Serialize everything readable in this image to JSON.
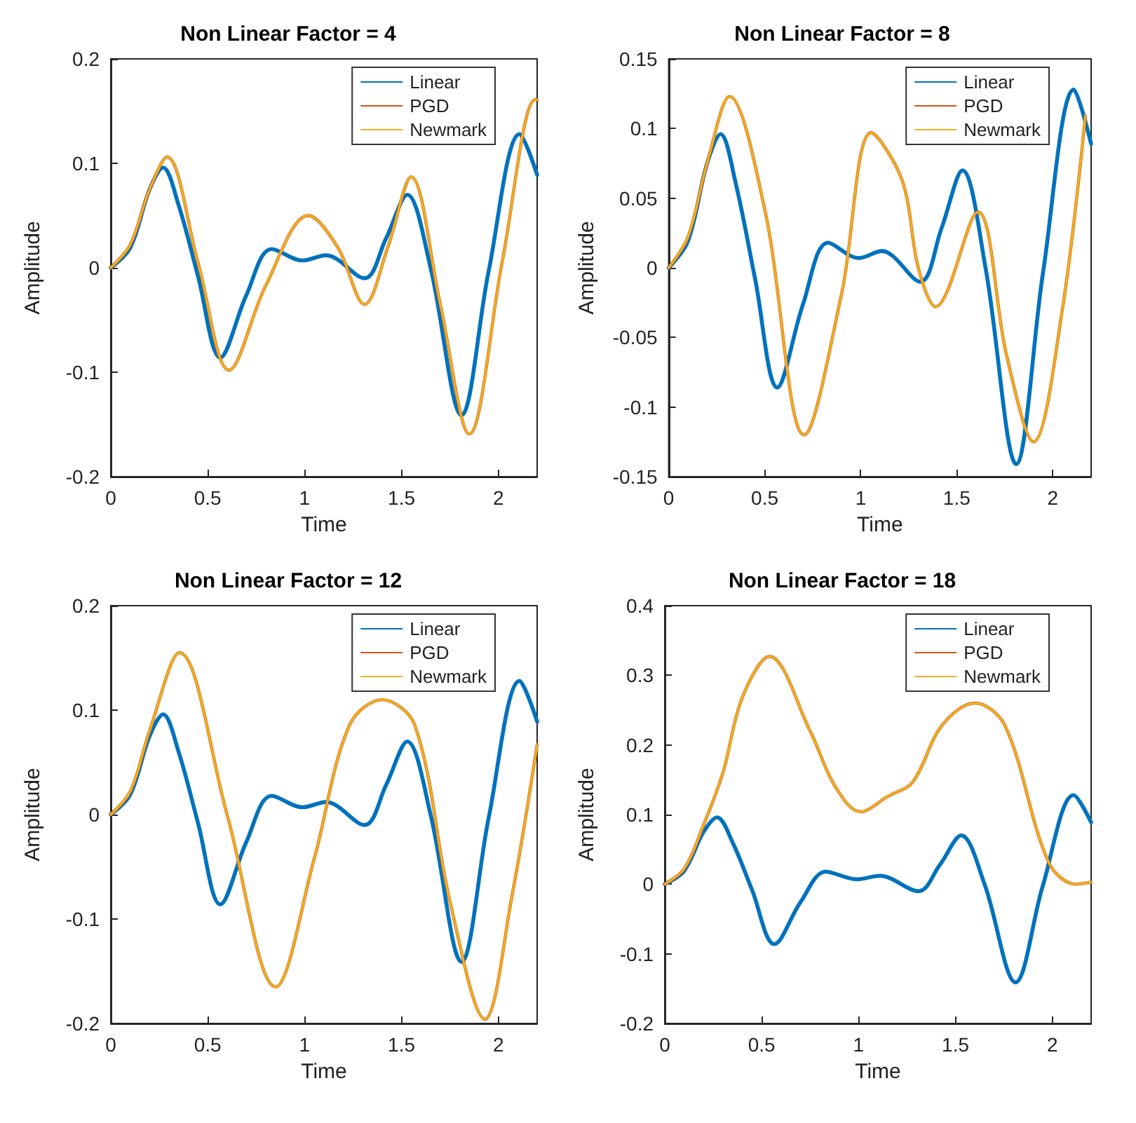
{
  "chart_data": [
    {
      "type": "line",
      "title": "Non Linear Factor = 4",
      "xlabel": "Time",
      "ylabel": "Amplitude",
      "xlim": [
        0,
        2.2
      ],
      "xticks": [
        0,
        0.5,
        1,
        1.5,
        2
      ],
      "ylim": [
        -0.2,
        0.2
      ],
      "yticks": [
        -0.2,
        -0.1,
        0,
        0.1,
        0.2
      ],
      "grid": false,
      "legend": "top right",
      "marker": "none",
      "line_style": "solid",
      "series": [
        {
          "name": "Linear",
          "color": "#0072bd",
          "x": [
            0,
            0.1,
            0.2,
            0.27,
            0.35,
            0.45,
            0.565,
            0.7,
            0.83,
            0.99,
            1.11,
            1.31,
            1.42,
            1.53,
            1.65,
            1.81,
            1.95,
            2.11,
            2.2
          ],
          "values": [
            0,
            0.019,
            0.075,
            0.096,
            0.06,
            -0.008,
            -0.086,
            -0.026,
            0.018,
            0.007,
            0.012,
            -0.01,
            0.028,
            0.07,
            0,
            -0.141,
            -0.003,
            0.128,
            0.089
          ]
        },
        {
          "name": "PGD",
          "color": "#d95319",
          "x": [
            0,
            0.1,
            0.2,
            0.29,
            0.45,
            0.61,
            0.8,
            1.02,
            1.17,
            1.31,
            1.43,
            1.55,
            1.7,
            1.85,
            2.02,
            2.19,
            2.2
          ],
          "values": [
            0,
            0.022,
            0.075,
            0.106,
            0.005,
            -0.098,
            -0.017,
            0.05,
            0.02,
            -0.035,
            0.02,
            0.087,
            -0.035,
            -0.159,
            0.006,
            0.161,
            0.161
          ]
        },
        {
          "name": "Newmark",
          "color": "#edb120",
          "x": [
            0,
            0.1,
            0.2,
            0.29,
            0.45,
            0.61,
            0.8,
            1.02,
            1.17,
            1.31,
            1.43,
            1.55,
            1.7,
            1.85,
            2.02,
            2.19,
            2.2
          ],
          "values": [
            0,
            0.022,
            0.075,
            0.106,
            0.005,
            -0.098,
            -0.017,
            0.05,
            0.02,
            -0.035,
            0.02,
            0.087,
            -0.035,
            -0.159,
            0.006,
            0.161,
            0.161
          ]
        }
      ]
    },
    {
      "type": "line",
      "title": "Non Linear Factor = 8",
      "xlabel": "Time",
      "ylabel": "Amplitude",
      "xlim": [
        0,
        2.2
      ],
      "xticks": [
        0,
        0.5,
        1,
        1.5,
        2
      ],
      "ylim": [
        -0.15,
        0.15
      ],
      "yticks": [
        -0.15,
        -0.1,
        -0.05,
        0,
        0.05,
        0.1,
        0.15
      ],
      "grid": false,
      "legend": "top right",
      "marker": "none",
      "line_style": "solid",
      "series": [
        {
          "name": "Linear",
          "color": "#0072bd",
          "x": [
            0,
            0.1,
            0.2,
            0.27,
            0.35,
            0.45,
            0.565,
            0.7,
            0.83,
            0.99,
            1.11,
            1.31,
            1.42,
            1.53,
            1.65,
            1.81,
            1.95,
            2.11,
            2.2
          ],
          "values": [
            0,
            0.019,
            0.075,
            0.096,
            0.06,
            -0.008,
            -0.086,
            -0.026,
            0.018,
            0.007,
            0.012,
            -0.01,
            0.028,
            0.07,
            0,
            -0.141,
            -0.003,
            0.128,
            0.089
          ]
        },
        {
          "name": "PGD",
          "color": "#d95319",
          "x": [
            0,
            0.1,
            0.2,
            0.317,
            0.5,
            0.706,
            0.9,
            1.055,
            1.215,
            1.3,
            1.39,
            1.61,
            1.76,
            1.9,
            2.05,
            2.17
          ],
          "values": [
            0,
            0.022,
            0.075,
            0.123,
            0.042,
            -0.12,
            -0.019,
            0.097,
            0.063,
            0,
            -0.028,
            0.04,
            -0.063,
            -0.125,
            -0.03,
            0.109
          ]
        },
        {
          "name": "Newmark",
          "color": "#edb120",
          "x": [
            0,
            0.1,
            0.2,
            0.317,
            0.5,
            0.706,
            0.9,
            1.055,
            1.215,
            1.3,
            1.39,
            1.61,
            1.76,
            1.9,
            2.05,
            2.17
          ],
          "values": [
            0,
            0.022,
            0.075,
            0.123,
            0.042,
            -0.12,
            -0.019,
            0.097,
            0.063,
            0,
            -0.028,
            0.04,
            -0.063,
            -0.125,
            -0.03,
            0.109
          ]
        }
      ]
    },
    {
      "type": "line",
      "title": "Non Linear Factor = 12",
      "xlabel": "Time",
      "ylabel": "Amplitude",
      "xlim": [
        0,
        2.2
      ],
      "xticks": [
        0,
        0.5,
        1,
        1.5,
        2
      ],
      "ylim": [
        -0.2,
        0.2
      ],
      "yticks": [
        -0.2,
        -0.1,
        0,
        0.1,
        0.2
      ],
      "grid": false,
      "legend": "top right",
      "marker": "none",
      "line_style": "solid",
      "series": [
        {
          "name": "Linear",
          "color": "#0072bd",
          "x": [
            0,
            0.1,
            0.2,
            0.27,
            0.35,
            0.45,
            0.565,
            0.7,
            0.83,
            0.99,
            1.11,
            1.31,
            1.42,
            1.53,
            1.65,
            1.81,
            1.95,
            2.11,
            2.2
          ],
          "values": [
            0,
            0.019,
            0.075,
            0.096,
            0.06,
            -0.008,
            -0.086,
            -0.026,
            0.018,
            0.007,
            0.012,
            -0.01,
            0.028,
            0.07,
            0,
            -0.141,
            -0.003,
            0.128,
            0.089
          ]
        },
        {
          "name": "PGD",
          "color": "#d95319",
          "x": [
            0,
            0.1,
            0.2,
            0.355,
            0.6,
            0.85,
            1.05,
            1.23,
            1.4,
            1.57,
            1.75,
            1.93,
            2.07,
            2.2
          ],
          "values": [
            0,
            0.022,
            0.08,
            0.155,
            0,
            -0.165,
            -0.042,
            0.085,
            0.11,
            0.085,
            -0.083,
            -0.196,
            -0.078,
            0.067
          ]
        },
        {
          "name": "Newmark",
          "color": "#edb120",
          "x": [
            0,
            0.1,
            0.2,
            0.355,
            0.6,
            0.85,
            1.05,
            1.23,
            1.4,
            1.57,
            1.75,
            1.93,
            2.07,
            2.2
          ],
          "values": [
            0,
            0.022,
            0.08,
            0.155,
            0,
            -0.165,
            -0.042,
            0.085,
            0.11,
            0.085,
            -0.083,
            -0.196,
            -0.078,
            0.067
          ]
        }
      ]
    },
    {
      "type": "line",
      "title": "Non Linear Factor = 18",
      "xlabel": "Time",
      "ylabel": "Amplitude",
      "xlim": [
        0,
        2.2
      ],
      "xticks": [
        0,
        0.5,
        1,
        1.5,
        2
      ],
      "ylim": [
        -0.2,
        0.4
      ],
      "yticks": [
        -0.2,
        -0.1,
        0,
        0.1,
        0.2,
        0.3,
        0.4
      ],
      "grid": false,
      "legend": "top right",
      "marker": "none",
      "line_style": "solid",
      "series": [
        {
          "name": "Linear",
          "color": "#0072bd",
          "x": [
            0,
            0.1,
            0.2,
            0.27,
            0.35,
            0.45,
            0.565,
            0.7,
            0.83,
            0.99,
            1.11,
            1.31,
            1.42,
            1.53,
            1.65,
            1.81,
            1.95,
            2.11,
            2.2
          ],
          "values": [
            0,
            0.019,
            0.075,
            0.096,
            0.06,
            -0.008,
            -0.086,
            -0.026,
            0.018,
            0.007,
            0.012,
            -0.01,
            0.028,
            0.07,
            0,
            -0.141,
            -0.003,
            0.128,
            0.089
          ]
        },
        {
          "name": "PGD",
          "color": "#d95319",
          "x": [
            0,
            0.1,
            0.2,
            0.3,
            0.4,
            0.54,
            0.75,
            0.88,
            1.01,
            1.15,
            1.28,
            1.43,
            1.6,
            1.755,
            1.98,
            2.12,
            2.2
          ],
          "values": [
            0,
            0.022,
            0.085,
            0.16,
            0.268,
            0.327,
            0.22,
            0.14,
            0.104,
            0.126,
            0.147,
            0.228,
            0.26,
            0.228,
            0.032,
            0,
            0.003
          ]
        },
        {
          "name": "Newmark",
          "color": "#edb120",
          "x": [
            0,
            0.1,
            0.2,
            0.3,
            0.4,
            0.54,
            0.75,
            0.88,
            1.01,
            1.15,
            1.28,
            1.43,
            1.6,
            1.755,
            1.98,
            2.12,
            2.2
          ],
          "values": [
            0,
            0.022,
            0.085,
            0.16,
            0.268,
            0.327,
            0.22,
            0.14,
            0.104,
            0.126,
            0.147,
            0.228,
            0.26,
            0.228,
            0.032,
            0,
            0.003
          ]
        }
      ]
    }
  ]
}
